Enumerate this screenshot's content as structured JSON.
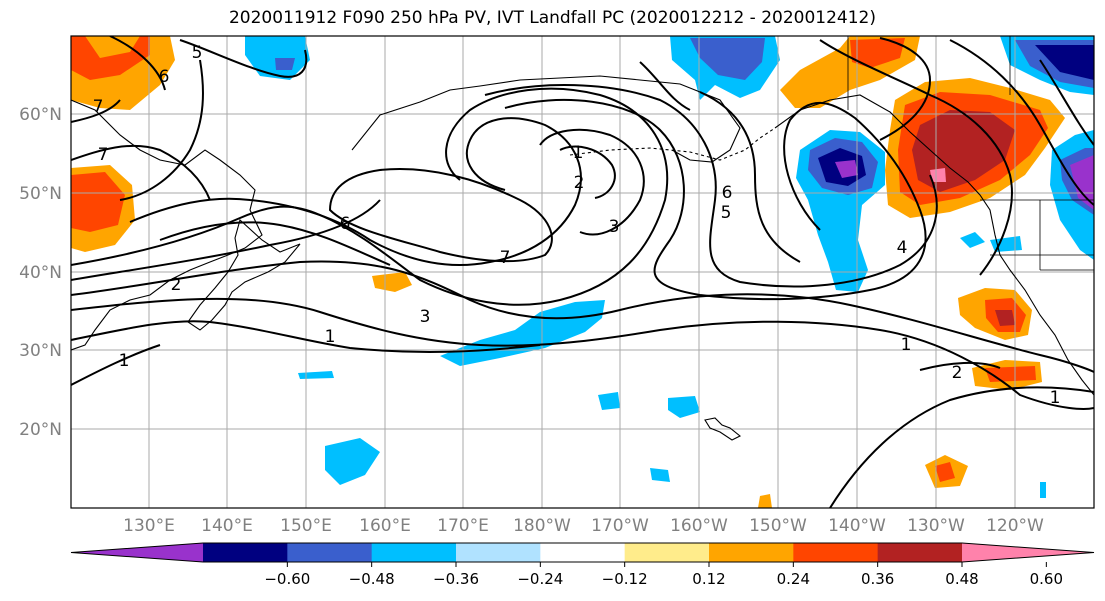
{
  "title": "2020011912 F090 250 hPa PV, IVT Landfall PC (2020012212 - 2020012412)",
  "lat_labels": [
    "60°N",
    "50°N",
    "40°N",
    "30°N",
    "20°N"
  ],
  "lon_labels": [
    "130°E",
    "140°E",
    "150°E",
    "160°E",
    "170°E",
    "180°W",
    "170°W",
    "160°W",
    "150°W",
    "140°W",
    "130°W",
    "120°W"
  ],
  "colorbar": {
    "colors": [
      "#9932cc",
      "#000080",
      "#3a5fcd",
      "#00bfff",
      "#b0e2ff",
      "#ffffff",
      "#ffec8b",
      "#ffa500",
      "#ff4500",
      "#b22222",
      "#ff82ab"
    ],
    "tick_labels": [
      "−0.60",
      "−0.48",
      "−0.36",
      "−0.24",
      "−0.12",
      "0.12",
      "0.24",
      "0.36",
      "0.48",
      "0.60"
    ]
  },
  "contour_labels": [
    "6",
    "5",
    "7",
    "7",
    "6",
    "2",
    "1",
    "1",
    "1",
    "2",
    "3",
    "7",
    "3",
    "6",
    "5",
    "4",
    "1",
    "2",
    "1"
  ]
}
